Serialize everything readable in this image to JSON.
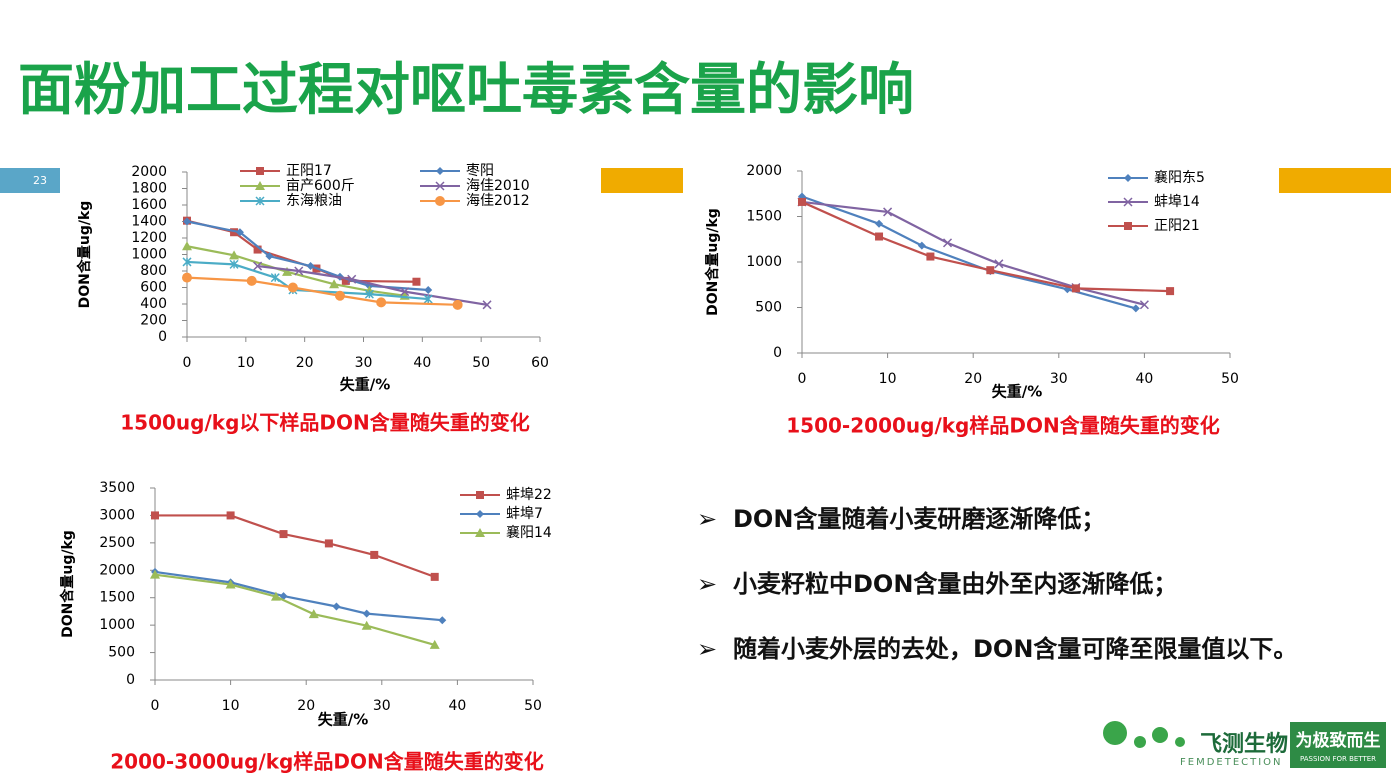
{
  "header": {
    "title": "面粉加工过程对呕吐毒素含量的影响",
    "page_number": "23"
  },
  "chart_data": [
    {
      "type": "line",
      "title": "1500ug/kg以下样品DON含量随失重的变化",
      "x_label": "失重/%",
      "y_label": "DON含量ug/kg",
      "xlim": [
        0,
        60
      ],
      "xticks": [
        0,
        10,
        20,
        30,
        40,
        50,
        60
      ],
      "ylim": [
        0,
        2000
      ],
      "yticks": [
        0,
        200,
        400,
        600,
        800,
        1000,
        1200,
        1400,
        1600,
        1800,
        2000
      ],
      "legend": "top",
      "grid": false,
      "series": [
        {
          "name": "正阳17",
          "color": "#c0504d",
          "marker": "square",
          "x": [
            0,
            8,
            12,
            22,
            27,
            39
          ],
          "values": [
            1410,
            1270,
            1060,
            830,
            680,
            670
          ]
        },
        {
          "name": "枣阳",
          "color": "#4f81bd",
          "marker": "diamond",
          "x": [
            0,
            9,
            14,
            21,
            26,
            31,
            41
          ],
          "values": [
            1400,
            1270,
            980,
            860,
            730,
            620,
            570
          ]
        },
        {
          "name": "亩产600斤",
          "color": "#9bbb59",
          "marker": "triangle",
          "x": [
            0,
            8,
            17,
            25,
            31,
            37
          ],
          "values": [
            1100,
            990,
            790,
            640,
            560,
            500
          ]
        },
        {
          "name": "海佳2010",
          "color": "#8064a2",
          "marker": "x",
          "x": [
            12,
            19,
            28,
            37,
            51
          ],
          "values": [
            860,
            800,
            700,
            550,
            390
          ]
        },
        {
          "name": "东海粮油",
          "color": "#4bacc6",
          "marker": "asterisk",
          "x": [
            0,
            8,
            15,
            18,
            31,
            41
          ],
          "values": [
            910,
            880,
            720,
            570,
            520,
            460
          ]
        },
        {
          "name": "海佳2012",
          "color": "#f79646",
          "marker": "circle",
          "x": [
            0,
            11,
            18,
            26,
            33,
            46
          ],
          "values": [
            720,
            680,
            600,
            500,
            420,
            390
          ]
        }
      ]
    },
    {
      "type": "line",
      "title": "1500-2000ug/kg样品DON含量随失重的变化",
      "x_label": "失重/%",
      "y_label": "DON含量ug/kg",
      "xlim": [
        0,
        50
      ],
      "xticks": [
        0,
        10,
        20,
        30,
        40,
        50
      ],
      "ylim": [
        0,
        2000
      ],
      "yticks": [
        0,
        500,
        1000,
        1500,
        2000
      ],
      "legend": "top-right",
      "grid": false,
      "series": [
        {
          "name": "襄阳东5",
          "color": "#4f81bd",
          "marker": "diamond",
          "x": [
            0,
            9,
            14,
            22,
            31,
            39
          ],
          "values": [
            1720,
            1420,
            1180,
            900,
            700,
            490
          ]
        },
        {
          "name": "蚌埠14",
          "color": "#8064a2",
          "marker": "x",
          "x": [
            0,
            10,
            17,
            23,
            32,
            40
          ],
          "values": [
            1660,
            1550,
            1210,
            980,
            720,
            530
          ]
        },
        {
          "name": "正阳21",
          "color": "#c0504d",
          "marker": "square",
          "x": [
            0,
            9,
            15,
            22,
            32,
            43
          ],
          "values": [
            1660,
            1280,
            1060,
            910,
            710,
            680
          ]
        }
      ]
    },
    {
      "type": "line",
      "title": "2000-3000ug/kg样品DON含量随失重的变化",
      "x_label": "失重/%",
      "y_label": "DON含量ug/kg",
      "xlim": [
        0,
        50
      ],
      "xticks": [
        0,
        10,
        20,
        30,
        40,
        50
      ],
      "ylim": [
        0,
        3500
      ],
      "yticks": [
        0,
        500,
        1000,
        1500,
        2000,
        2500,
        3000,
        3500
      ],
      "legend": "top-right",
      "grid": false,
      "series": [
        {
          "name": "蚌埠22",
          "color": "#c0504d",
          "marker": "square",
          "x": [
            0,
            10,
            17,
            23,
            29,
            37
          ],
          "values": [
            3000,
            3000,
            2660,
            2490,
            2280,
            1880
          ]
        },
        {
          "name": "蚌埠7",
          "color": "#4f81bd",
          "marker": "diamond",
          "x": [
            0,
            10,
            17,
            24,
            28,
            38
          ],
          "values": [
            1970,
            1780,
            1530,
            1340,
            1210,
            1090
          ]
        },
        {
          "name": "襄阳14",
          "color": "#9bbb59",
          "marker": "triangle",
          "x": [
            0,
            10,
            16,
            21,
            28,
            37
          ],
          "values": [
            1920,
            1740,
            1520,
            1200,
            990,
            640
          ]
        }
      ]
    }
  ],
  "bullets": [
    "DON含量随着小麦研磨逐渐降低；",
    "小麦籽粒中DON含量由外至内逐渐降低；",
    "随着小麦外层的去处，DON含量可降至限量值以下。"
  ],
  "logo": {
    "name": "飞测生物",
    "brand": "FEMDETECTION",
    "slogan": "为极致而生",
    "slogan_en": "PASSION FOR BETTER"
  }
}
